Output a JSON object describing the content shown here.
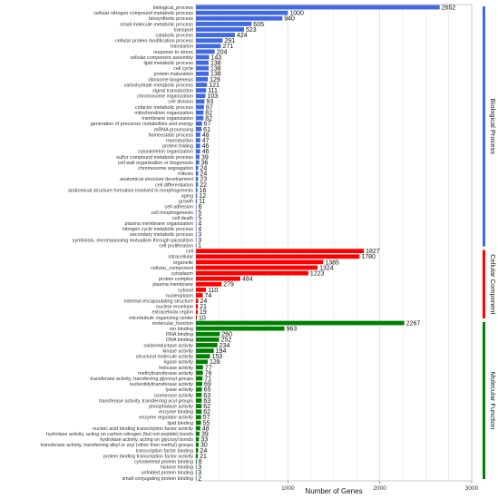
{
  "chart_data": {
    "type": "bar",
    "orientation": "horizontal",
    "xlabel": "Number of Genes",
    "ylabel": "",
    "xlim": [
      0,
      3000
    ],
    "xticks": [
      1000,
      2000,
      3000
    ],
    "grid": true,
    "groups": [
      {
        "name": "Biological Process",
        "color": "#4169E1",
        "categories": [
          "biological_process",
          "cellular nitrogen compound metabolic process",
          "biosynthetic process",
          "small molecule metabolic process",
          "transport",
          "catabolic process",
          "cellular protein modification process",
          "translation",
          "response to stress",
          "cellular component assembly",
          "lipid metabolic process",
          "cell cycle",
          "protein maturation",
          "ribosome biogenesis",
          "carbohydrate metabolic process",
          "signal transduction",
          "chromosome organization",
          "cell division",
          "cofactor metabolic process",
          "mitochondrion organization",
          "membrane organization",
          "generation of precursor metabolites and energy",
          "mRNA processing",
          "homeostatic process",
          "reproduction",
          "protein folding",
          "cytoskeleton organization",
          "sulfur compound metabolic process",
          "cell wall organization or biogenesis",
          "chromosome segregation",
          "mitosis",
          "anatomical structure development",
          "cell differentiation",
          "anatomical structure formation involved in morphogenesis",
          "aging",
          "growth",
          "cell adhesion",
          "cell morphogenesis",
          "cell death",
          "plasma membrane organization",
          "nitrogen cycle metabolic process",
          "secondary metabolic process",
          "symbiosis, encompassing mutualism through parasitism",
          "cell proliferation"
        ],
        "values": [
          2652,
          1000,
          940,
          605,
          523,
          424,
          291,
          271,
          204,
          143,
          138,
          138,
          138,
          129,
          121,
          111,
          103,
          93,
          87,
          82,
          82,
          67,
          61,
          48,
          47,
          46,
          46,
          39,
          36,
          24,
          24,
          23,
          22,
          16,
          12,
          11,
          6,
          5,
          5,
          4,
          4,
          3,
          3,
          1
        ]
      },
      {
        "name": "Cellular Component",
        "color": "#FF0000",
        "categories": [
          "cell",
          "intracellular",
          "organelle",
          "cellular_component",
          "cytoplasm",
          "protein complex",
          "plasma membrane",
          "cytosol",
          "nucleoplasm",
          "external encapsulating structure",
          "nuclear envelope",
          "extracellular region",
          "microtubule organizing center"
        ],
        "values": [
          1827,
          1780,
          1385,
          1324,
          1223,
          484,
          279,
          110,
          74,
          24,
          21,
          19,
          10
        ]
      },
      {
        "name": "Molecular Function",
        "color": "#008000",
        "categories": [
          "molecular_function",
          "ion binding",
          "RNA binding",
          "DNA binding",
          "oxidoreductase activity",
          "kinase activity",
          "structural molecule activity",
          "ligase activity",
          "helicase activity",
          "methyltransferase activity",
          "transferase activity, transferring glycosyl groups",
          "nucleotidyltransferase activity",
          "lyase activity",
          "isomerase activity",
          "transferase activity, transferring acyl groups",
          "phosphatase activity",
          "enzyme binding",
          "enzyme regulator activity",
          "lipid binding",
          "nucleic acid binding transcription factor activity",
          "hydrolase activity, acting on carbon-nitrogen (but not peptide) bonds",
          "hydrolase activity, acting on glycosyl bonds",
          "transferase activity, transferring alkyl or aryl (other than methyl) groups",
          "transcription factor binding",
          "protein binding transcription factor activity",
          "cytoskeletal protein binding",
          "histone binding",
          "unfolded protein binding",
          "small conjugating protein binding"
        ],
        "values": [
          2267,
          963,
          260,
          252,
          234,
          194,
          153,
          128,
          77,
          76,
          71,
          69,
          65,
          63,
          63,
          62,
          62,
          57,
          55,
          48,
          39,
          33,
          30,
          24,
          21,
          8,
          3,
          3,
          2
        ]
      }
    ]
  }
}
